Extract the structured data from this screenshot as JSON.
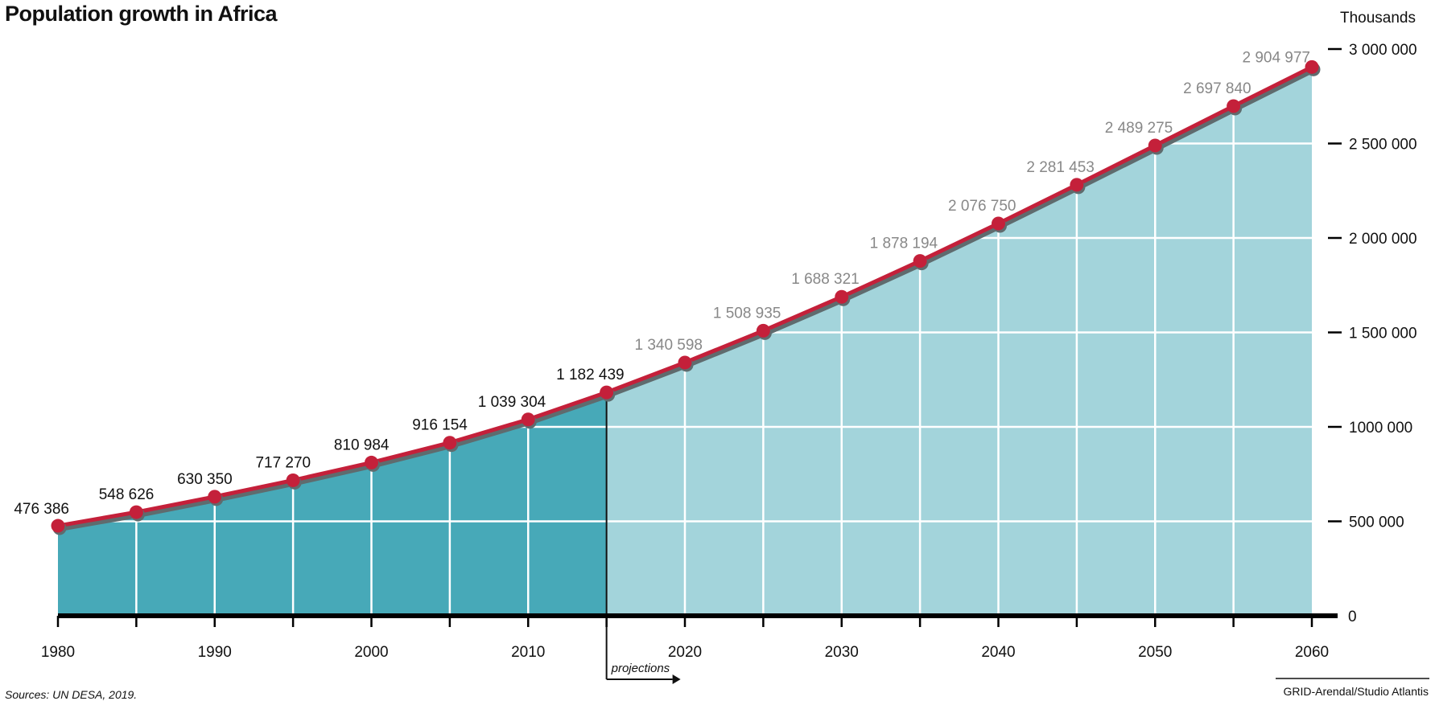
{
  "chart_data": {
    "type": "area",
    "title": "Population growth in Africa",
    "unit_label": "Thousands",
    "projection_label": "projections",
    "source": "Sources: UN DESA, 2019.",
    "credit": "GRID-Arendal/Studio Atlantis",
    "x": [
      1980,
      1985,
      1990,
      1995,
      2000,
      2005,
      2010,
      2015,
      2020,
      2025,
      2030,
      2035,
      2040,
      2045,
      2050,
      2055,
      2060
    ],
    "values": [
      476386,
      548626,
      630350,
      717270,
      810984,
      916154,
      1039304,
      1182439,
      1340598,
      1508935,
      1688321,
      1878194,
      2076750,
      2281453,
      2489275,
      2697840,
      2904977
    ],
    "value_labels": [
      "476 386",
      "548 626",
      "630 350",
      "717 270",
      "810 984",
      "916 154",
      "1 039 304",
      "1 182 439",
      "1 340 598",
      "1 508 935",
      "1 688 321",
      "1 878  194",
      "2 076 750",
      "2 281 453",
      "2 489 275",
      "2 697 840",
      "2 904 977"
    ],
    "projection_start": 2015,
    "xlim": [
      1980,
      2060
    ],
    "ylim": [
      0,
      3000000
    ],
    "xticks": [
      1980,
      1990,
      2000,
      2010,
      2020,
      2030,
      2040,
      2050,
      2060
    ],
    "yticks": [
      0,
      500000,
      1000000,
      1500000,
      2000000,
      2500000,
      3000000
    ],
    "ytick_labels": [
      "0",
      "500 000",
      "1000 000",
      "1 500 000",
      "2 000 000",
      "2 500 000",
      "3 000 000"
    ],
    "colors": {
      "historical_fill": "#47a9b8",
      "projection_fill": "#a3d4db",
      "line": "#c4203a",
      "line_shadow": "#5f6b6e",
      "projection_label_text": "#888888",
      "historical_label_text": "#111111"
    }
  }
}
